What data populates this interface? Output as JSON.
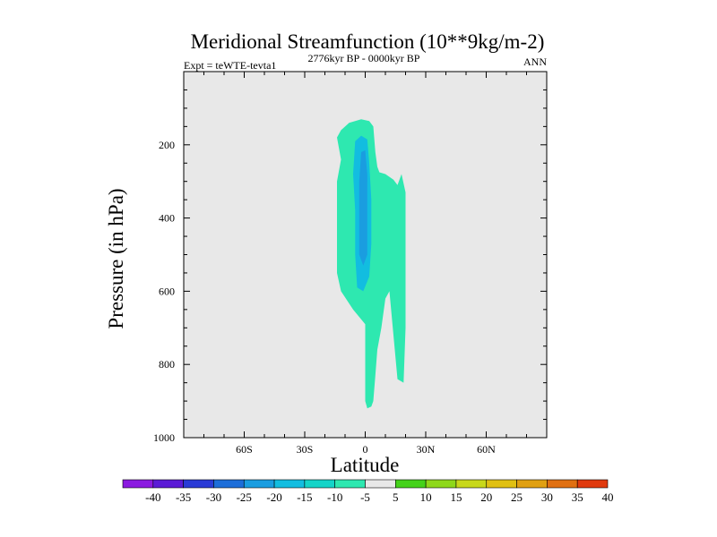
{
  "chart_data": {
    "type": "filled-contour",
    "title": "Meridional Streamfunction (10**9kg/m-2)",
    "subtitle_left": "Expt = teWTE-tevta1",
    "subtitle_center": "2776kyr BP - 0000kyr BP",
    "subtitle_right": "ANN",
    "xlabel": "Latitude",
    "ylabel": "Pressure (in hPa)",
    "xlim": [
      -90,
      90
    ],
    "ylim": [
      1000,
      0
    ],
    "xticks": [
      {
        "value": -60,
        "label": "60S"
      },
      {
        "value": -30,
        "label": "30S"
      },
      {
        "value": 0,
        "label": "0"
      },
      {
        "value": 30,
        "label": "30N"
      },
      {
        "value": 60,
        "label": "60N"
      }
    ],
    "yticks": [
      {
        "value": 200,
        "label": "200"
      },
      {
        "value": 400,
        "label": "400"
      },
      {
        "value": 600,
        "label": "600"
      },
      {
        "value": 800,
        "label": "800"
      },
      {
        "value": 1000,
        "label": "1000"
      }
    ],
    "colorbar": {
      "labels": [
        "-40",
        "-35",
        "-30",
        "-25",
        "-20",
        "-15",
        "-10",
        "-5",
        "5",
        "10",
        "15",
        "20",
        "25",
        "30",
        "35",
        "40"
      ],
      "colors": [
        "#8b1ae0",
        "#5b1bd6",
        "#2a3bd6",
        "#1d6ed9",
        "#1a9de0",
        "#12bde0",
        "#14d4c8",
        "#2ee8b0",
        "#e8e8e8",
        "#44d21a",
        "#8ed81a",
        "#c8d81a",
        "#e0c012",
        "#e0a012",
        "#e07012",
        "#e03a0e"
      ]
    },
    "background_color": "#e8e8e8",
    "regions": [
      {
        "level": "-10 to -5",
        "color": "#2ee8b0",
        "outline": [
          [
            -12,
            160
          ],
          [
            -8,
            140
          ],
          [
            -2,
            130
          ],
          [
            2,
            135
          ],
          [
            4,
            150
          ],
          [
            5,
            220
          ],
          [
            6,
            260
          ],
          [
            7,
            275
          ],
          [
            10,
            280
          ],
          [
            14,
            295
          ],
          [
            16,
            310
          ],
          [
            18,
            280
          ],
          [
            20,
            330
          ],
          [
            20,
            500
          ],
          [
            20,
            700
          ],
          [
            19,
            850
          ],
          [
            16,
            840
          ],
          [
            14,
            720
          ],
          [
            12,
            600
          ],
          [
            10,
            620
          ],
          [
            8,
            700
          ],
          [
            6,
            760
          ],
          [
            5,
            830
          ],
          [
            4,
            900
          ],
          [
            3,
            915
          ],
          [
            1,
            920
          ],
          [
            0,
            900
          ],
          [
            0,
            800
          ],
          [
            0,
            690
          ],
          [
            -6,
            650
          ],
          [
            -12,
            600
          ],
          [
            -14,
            550
          ],
          [
            -14,
            400
          ],
          [
            -14,
            300
          ],
          [
            -12,
            240
          ],
          [
            -14,
            180
          ]
        ]
      },
      {
        "level": "-15 to -10",
        "color": "#12bde0",
        "outline": [
          [
            -5,
            190
          ],
          [
            -2,
            175
          ],
          [
            1,
            185
          ],
          [
            2,
            250
          ],
          [
            3,
            350
          ],
          [
            3,
            470
          ],
          [
            2,
            560
          ],
          [
            -1,
            600
          ],
          [
            -4,
            590
          ],
          [
            -5,
            500
          ],
          [
            -5,
            380
          ],
          [
            -6,
            280
          ]
        ]
      },
      {
        "level": "-20 to -15",
        "color": "#1a9de0",
        "outline": [
          [
            -2,
            220
          ],
          [
            0,
            215
          ],
          [
            1,
            280
          ],
          [
            1,
            420
          ],
          [
            1,
            500
          ],
          [
            -1,
            530
          ],
          [
            -3,
            500
          ],
          [
            -3,
            400
          ],
          [
            -3,
            300
          ]
        ]
      }
    ]
  }
}
